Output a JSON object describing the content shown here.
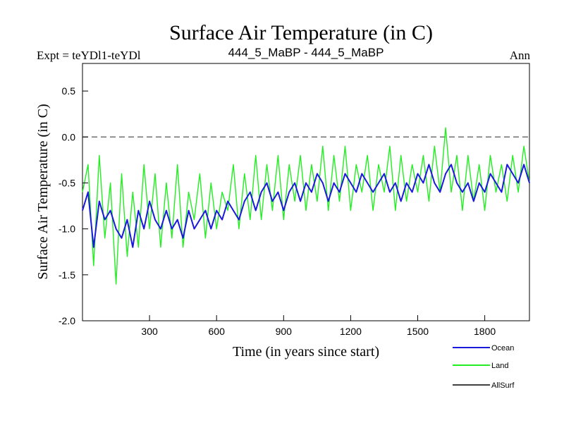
{
  "chart_data": {
    "type": "line",
    "title": "Surface Air Temperature (in C)",
    "left_caption": "Expt = teYDl1-teYDl",
    "center_caption": "444_5_MaBP - 444_5_MaBP",
    "right_caption": "Ann",
    "xlabel": "Time (in years since start)",
    "ylabel": "Surface Air Temperature (in C)",
    "xlim": [
      0,
      2000
    ],
    "ylim": [
      -2.0,
      0.8
    ],
    "x_ticks": [
      300,
      600,
      900,
      1200,
      1500,
      1800
    ],
    "x_tick_labels": [
      "300",
      "600",
      "900",
      "1200",
      "1500",
      "1800"
    ],
    "y_ticks": [
      -2.0,
      -1.5,
      -1.0,
      -0.5,
      0.0,
      0.5
    ],
    "y_tick_labels": [
      "-2.0",
      "-1.5",
      "-1.0",
      "-0.5",
      "0.0",
      "0.5"
    ],
    "reference_line": 0.0,
    "series": [
      {
        "name": "Ocean",
        "color": "#1a1adc",
        "x": [
          0,
          25,
          50,
          75,
          100,
          125,
          150,
          175,
          200,
          225,
          250,
          275,
          300,
          325,
          350,
          375,
          400,
          425,
          450,
          475,
          500,
          525,
          550,
          575,
          600,
          625,
          650,
          675,
          700,
          725,
          750,
          775,
          800,
          825,
          850,
          875,
          900,
          925,
          950,
          975,
          1000,
          1025,
          1050,
          1075,
          1100,
          1125,
          1150,
          1175,
          1200,
          1225,
          1250,
          1275,
          1300,
          1325,
          1350,
          1375,
          1400,
          1425,
          1450,
          1475,
          1500,
          1525,
          1550,
          1575,
          1600,
          1625,
          1650,
          1675,
          1700,
          1725,
          1750,
          1775,
          1800,
          1825,
          1850,
          1875,
          1900,
          1925,
          1950,
          1975,
          2000
        ],
        "values": [
          -0.8,
          -0.6,
          -1.2,
          -0.7,
          -0.9,
          -0.8,
          -1.0,
          -1.1,
          -0.9,
          -1.2,
          -0.8,
          -1.0,
          -0.7,
          -0.9,
          -1.0,
          -0.8,
          -1.0,
          -0.9,
          -1.1,
          -0.8,
          -1.0,
          -0.9,
          -0.8,
          -1.0,
          -0.8,
          -0.9,
          -0.7,
          -0.8,
          -0.9,
          -0.7,
          -0.6,
          -0.8,
          -0.6,
          -0.5,
          -0.7,
          -0.6,
          -0.8,
          -0.6,
          -0.5,
          -0.7,
          -0.5,
          -0.6,
          -0.4,
          -0.5,
          -0.7,
          -0.5,
          -0.6,
          -0.4,
          -0.5,
          -0.6,
          -0.4,
          -0.5,
          -0.6,
          -0.5,
          -0.4,
          -0.6,
          -0.5,
          -0.7,
          -0.5,
          -0.6,
          -0.4,
          -0.5,
          -0.3,
          -0.5,
          -0.6,
          -0.4,
          -0.3,
          -0.5,
          -0.6,
          -0.5,
          -0.7,
          -0.5,
          -0.6,
          -0.4,
          -0.5,
          -0.6,
          -0.3,
          -0.4,
          -0.5,
          -0.3,
          -0.5
        ]
      },
      {
        "name": "Land",
        "color": "#22ee22",
        "x": [
          0,
          25,
          50,
          75,
          100,
          125,
          150,
          175,
          200,
          225,
          250,
          275,
          300,
          325,
          350,
          375,
          400,
          425,
          450,
          475,
          500,
          525,
          550,
          575,
          600,
          625,
          650,
          675,
          700,
          725,
          750,
          775,
          800,
          825,
          850,
          875,
          900,
          925,
          950,
          975,
          1000,
          1025,
          1050,
          1075,
          1100,
          1125,
          1150,
          1175,
          1200,
          1225,
          1250,
          1275,
          1300,
          1325,
          1350,
          1375,
          1400,
          1425,
          1450,
          1475,
          1500,
          1525,
          1550,
          1575,
          1600,
          1625,
          1650,
          1675,
          1700,
          1725,
          1750,
          1775,
          1800,
          1825,
          1850,
          1875,
          1900,
          1925,
          1950,
          1975,
          2000
        ],
        "values": [
          -0.6,
          -0.3,
          -1.4,
          -0.2,
          -1.1,
          -0.5,
          -1.6,
          -0.4,
          -1.3,
          -0.6,
          -1.2,
          -0.3,
          -1.0,
          -0.4,
          -1.2,
          -0.5,
          -1.1,
          -0.3,
          -1.2,
          -0.6,
          -0.9,
          -0.4,
          -1.1,
          -0.5,
          -1.0,
          -0.6,
          -0.8,
          -0.3,
          -1.0,
          -0.4,
          -0.9,
          -0.2,
          -0.9,
          -0.3,
          -0.8,
          -0.2,
          -0.9,
          -0.3,
          -0.7,
          -0.2,
          -0.8,
          -0.3,
          -0.7,
          -0.1,
          -0.8,
          -0.2,
          -0.7,
          -0.1,
          -0.8,
          -0.3,
          -0.6,
          -0.2,
          -0.8,
          -0.3,
          -0.6,
          -0.1,
          -0.8,
          -0.2,
          -0.7,
          -0.3,
          -0.6,
          -0.2,
          -0.7,
          -0.1,
          -0.6,
          0.1,
          -0.6,
          -0.2,
          -0.8,
          -0.2,
          -0.7,
          -0.3,
          -0.8,
          -0.2,
          -0.6,
          -0.3,
          -0.7,
          -0.2,
          -0.6,
          -0.1,
          -0.5
        ]
      },
      {
        "name": "AllSurf",
        "color": "#000000",
        "x": [],
        "values": []
      }
    ],
    "legend_position": "bottom-right"
  }
}
